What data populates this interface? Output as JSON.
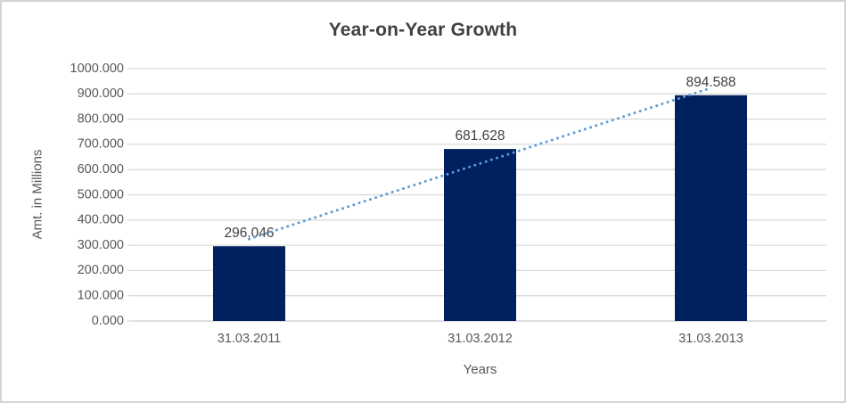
{
  "chart_data": {
    "type": "bar",
    "title": "Year-on-Year Growth",
    "xlabel": "Years",
    "ylabel": "Amt. in Millions",
    "categories": [
      "31.03.2011",
      "31.03.2012",
      "31.03.2013"
    ],
    "values": [
      296.046,
      681.628,
      894.588
    ],
    "value_labels": [
      "296.046",
      "681.628",
      "894.588"
    ],
    "ylim": [
      0,
      1000
    ],
    "ytick_step": 100,
    "ytick_labels": [
      "0.000",
      "100.000",
      "200.000",
      "300.000",
      "400.000",
      "500.000",
      "600.000",
      "700.000",
      "800.000",
      "900.000",
      "1000.000"
    ],
    "grid": true,
    "legend": "none",
    "trendline": {
      "type": "linear",
      "style": "dotted",
      "color": "#5b9bd5"
    },
    "colors": {
      "bar": "#002060",
      "gridline": "#d9d9d9",
      "axis_line": "#c9c9c9",
      "tick_text": "#595959",
      "label_text": "#404040",
      "title_text": "#404040",
      "frame_border": "#d3d3d3",
      "background": "#ffffff"
    }
  }
}
